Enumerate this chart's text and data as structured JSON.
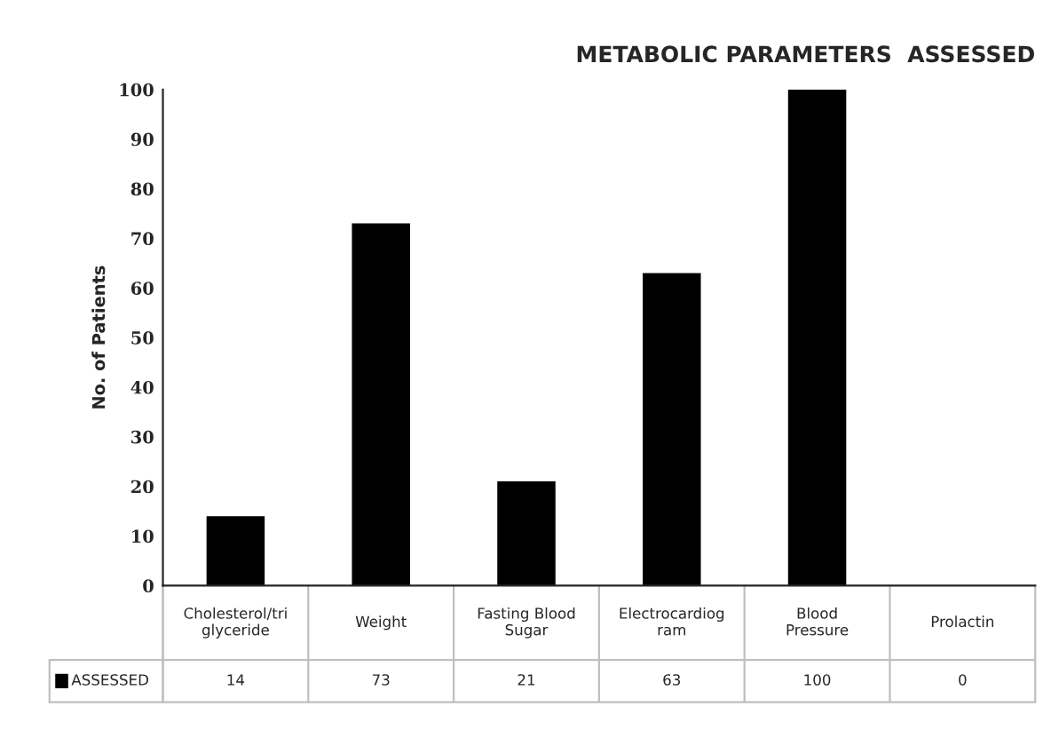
{
  "chart_data": {
    "type": "bar",
    "title": "METABOLIC PARAMETERS  ASSESSED",
    "ylabel": "No. of Patients",
    "categories": [
      "Cholesterol/tri\nglyceride",
      "Weight",
      "Fasting Blood\nSugar",
      "Electrocardiog\nram",
      "Blood\nPressure",
      "Prolactin"
    ],
    "series": [
      {
        "name": "ASSESSED",
        "color": "#000000",
        "values": [
          14,
          73,
          21,
          63,
          100,
          0
        ]
      }
    ],
    "ylim": [
      0,
      100
    ],
    "yticks": [
      0,
      10,
      20,
      30,
      40,
      50,
      60,
      70,
      80,
      90,
      100
    ],
    "grid": false,
    "legend": "bottom",
    "data_labels": true
  }
}
